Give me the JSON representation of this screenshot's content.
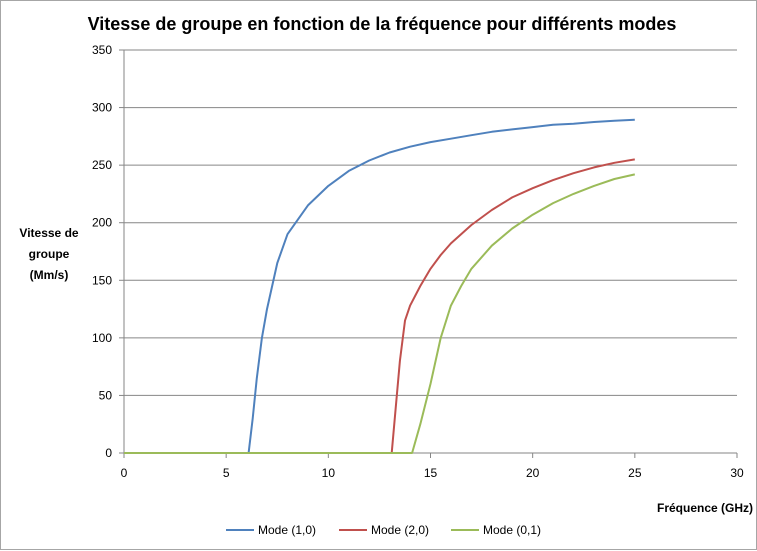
{
  "chart_data": {
    "type": "line",
    "title": "Vitesse de groupe en fonction de la fréquence pour différents modes",
    "xlabel": "Fréquence  (GHz)",
    "ylabel": [
      "Vitesse de",
      "groupe",
      "(Mm/s)"
    ],
    "xlim": [
      0,
      30
    ],
    "ylim": [
      0,
      350
    ],
    "xticks": [
      "0",
      "5",
      "10",
      "15",
      "20",
      "25",
      "30"
    ],
    "yticks": [
      "0",
      "50",
      "100",
      "150",
      "200",
      "250",
      "300",
      "350"
    ],
    "grid": "horizontal",
    "legend": "bottom",
    "series": [
      {
        "name": "Mode (1,0)",
        "color": "#4f81bd",
        "points": [
          [
            0,
            0
          ],
          [
            6,
            0
          ],
          [
            6.1,
            0
          ],
          [
            6.3,
            30
          ],
          [
            6.5,
            65
          ],
          [
            6.75,
            100
          ],
          [
            7,
            125
          ],
          [
            7.5,
            165
          ],
          [
            8,
            190
          ],
          [
            9,
            215
          ],
          [
            10,
            232
          ],
          [
            11,
            245
          ],
          [
            12,
            254
          ],
          [
            13,
            261
          ],
          [
            14,
            266
          ],
          [
            15,
            270
          ],
          [
            16,
            273
          ],
          [
            17,
            276
          ],
          [
            18,
            279
          ],
          [
            19,
            281
          ],
          [
            20,
            283
          ],
          [
            21,
            285
          ],
          [
            22,
            286
          ],
          [
            23,
            287.5
          ],
          [
            24,
            288.5
          ],
          [
            25,
            289.5
          ]
        ]
      },
      {
        "name": "Mode (2,0)",
        "color": "#c0504d",
        "points": [
          [
            0,
            0
          ],
          [
            13,
            0
          ],
          [
            13.1,
            0
          ],
          [
            13.3,
            40
          ],
          [
            13.5,
            80
          ],
          [
            13.75,
            115
          ],
          [
            14,
            128
          ],
          [
            14.5,
            145
          ],
          [
            15,
            160
          ],
          [
            15.5,
            172
          ],
          [
            16,
            182
          ],
          [
            17,
            198
          ],
          [
            18,
            211
          ],
          [
            19,
            222
          ],
          [
            20,
            230
          ],
          [
            21,
            237
          ],
          [
            22,
            243
          ],
          [
            23,
            248
          ],
          [
            24,
            252
          ],
          [
            25,
            255
          ]
        ]
      },
      {
        "name": "Mode (0,1)",
        "color": "#9bbb59",
        "points": [
          [
            0,
            0
          ],
          [
            14,
            0
          ],
          [
            14.1,
            0
          ],
          [
            14.5,
            25
          ],
          [
            15,
            60
          ],
          [
            15.5,
            100
          ],
          [
            16,
            128
          ],
          [
            16.5,
            145
          ],
          [
            17,
            160
          ],
          [
            18,
            180
          ],
          [
            19,
            195
          ],
          [
            20,
            207
          ],
          [
            21,
            217
          ],
          [
            22,
            225
          ],
          [
            23,
            232
          ],
          [
            24,
            238
          ],
          [
            25,
            242
          ]
        ]
      }
    ]
  }
}
